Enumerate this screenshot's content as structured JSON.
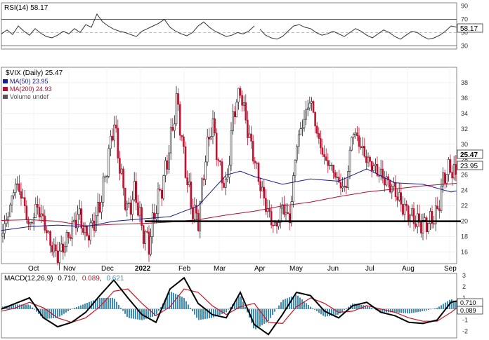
{
  "chart_data": [
    {
      "type": "line",
      "panel": "rsi",
      "label": "RSI(14) 58.17",
      "current_value_label": "58.17",
      "y_ticks": [
        30,
        50,
        70,
        90
      ],
      "ylim": [
        25,
        95
      ],
      "reference_lines": [
        30,
        70
      ],
      "series_color": "#333333",
      "series": [
        {
          "x": [
            0,
            8,
            16,
            24,
            32,
            40,
            48,
            56,
            64,
            72,
            80,
            88,
            96,
            104,
            112,
            120,
            128,
            136,
            144,
            152,
            160,
            168,
            176,
            184,
            192,
            200,
            208,
            216,
            224,
            232,
            240,
            248,
            256,
            264,
            272,
            280,
            288,
            296,
            304,
            312,
            320,
            328,
            336,
            344,
            352,
            360
          ],
          "values": [
            48,
            54,
            47,
            60,
            52,
            46,
            56,
            49,
            44,
            42,
            46,
            52,
            48,
            56,
            50,
            62,
            58,
            78,
            66,
            60,
            55,
            52,
            50,
            47,
            44,
            52,
            56,
            60,
            64,
            70,
            58,
            52,
            48,
            45,
            50,
            60,
            66,
            58,
            52,
            48,
            44,
            46,
            50,
            48,
            52,
            60
          ]
        },
        {
          "x": [
            368,
            376,
            384,
            392,
            400,
            408,
            416,
            424,
            432,
            440,
            448,
            456,
            464,
            472,
            480,
            488,
            496,
            504,
            512,
            520,
            528,
            536,
            544,
            552,
            560,
            568,
            576,
            584,
            592,
            600,
            608,
            616,
            624,
            632,
            640,
            648
          ],
          "values": [
            55,
            46,
            42,
            40,
            44,
            52,
            60,
            62,
            58,
            56,
            50,
            46,
            48,
            52,
            48,
            44,
            50,
            56,
            52,
            46,
            42,
            48,
            54,
            50,
            44,
            40,
            46,
            52,
            50,
            44,
            40,
            42,
            46,
            52,
            60,
            58.17
          ]
        }
      ]
    },
    {
      "type": "candlestick",
      "panel": "price",
      "label": "$VIX (Daily) 25.47",
      "ylim": [
        14.5,
        40
      ],
      "y_ticks": [
        16,
        18,
        20,
        22,
        24,
        26,
        28,
        30,
        32,
        34,
        36,
        38
      ],
      "x_ticks": [
        "Oct",
        "Nov",
        "Dec",
        "2022",
        "Feb",
        "Mar",
        "Apr",
        "May",
        "Jun",
        "Jul",
        "Aug",
        "Sep"
      ],
      "legend": [
        {
          "label": "MA(50) 23.95",
          "color": "#1a1a8c"
        },
        {
          "label": "MA(200) 24.93",
          "color": "#b01030"
        },
        {
          "label": "Volume undef",
          "color": "#555555"
        }
      ],
      "last_price_label": "25.47",
      "ma50_label": "23.95",
      "ma200_label": "24.93",
      "support_level": 20,
      "close_path": {
        "x": [
          0,
          10,
          20,
          30,
          40,
          50,
          60,
          70,
          80,
          90,
          100,
          110,
          120,
          130,
          140,
          150,
          160,
          170,
          180,
          190,
          200,
          210,
          220,
          230,
          240,
          250,
          260,
          270,
          280,
          290,
          300,
          310,
          320,
          330,
          340,
          350,
          360,
          370,
          380,
          390,
          400,
          410,
          420,
          430,
          440,
          450,
          460,
          470,
          480,
          490,
          500,
          510,
          520,
          530,
          540,
          550,
          560,
          570,
          580,
          590,
          600,
          610,
          620,
          630,
          640,
          648
        ],
        "values": [
          18,
          21,
          25,
          23,
          19,
          22,
          20,
          17,
          15.5,
          17,
          19,
          21,
          18,
          19.5,
          22,
          27,
          33,
          26,
          21,
          24,
          19,
          17,
          22,
          25,
          30,
          36,
          28,
          22,
          20,
          28,
          33,
          27,
          24,
          34,
          37,
          32,
          28,
          24,
          21,
          19,
          22,
          20,
          30,
          33,
          36,
          31,
          28,
          27,
          25,
          24,
          32,
          30,
          28,
          27,
          26,
          25,
          24,
          22,
          21,
          20,
          19.5,
          20,
          21,
          26,
          27,
          25.47
        ]
      },
      "ma50": {
        "x": [
          0,
          40,
          80,
          120,
          160,
          200,
          240,
          280,
          320,
          340,
          360,
          400,
          440,
          480,
          520,
          560,
          600,
          640,
          648
        ],
        "values": [
          18.8,
          19.3,
          19.5,
          19.3,
          20,
          20.3,
          20.6,
          22,
          26,
          26.5,
          25.8,
          24.8,
          25.5,
          25.2,
          26.8,
          25,
          24.8,
          23.8,
          23.95
        ]
      },
      "ma200": {
        "x": [
          0,
          40,
          80,
          120,
          160,
          200,
          240,
          280,
          320,
          360,
          400,
          440,
          480,
          520,
          560,
          600,
          648
        ],
        "values": [
          20.1,
          20.2,
          20.0,
          19.4,
          19.6,
          19.7,
          19.9,
          20.2,
          20.8,
          21.3,
          22,
          22.5,
          23.2,
          23.8,
          24.2,
          24.6,
          24.93
        ]
      }
    },
    {
      "type": "histogram+line",
      "panel": "macd",
      "label_prefix": "MACD(12,26,9)",
      "macd_value": "0.710",
      "signal_value": "0.089",
      "hist_value": "0.621",
      "macd_color": "#000000",
      "signal_color": "#d01020",
      "hist_color": "#3a8db8",
      "ylim": [
        -2.6,
        3.2
      ],
      "y_ticks": [
        -2,
        -1,
        0,
        1,
        2,
        3
      ],
      "macd": {
        "x": [
          0,
          20,
          40,
          60,
          80,
          100,
          120,
          140,
          160,
          180,
          200,
          220,
          240,
          260,
          280,
          300,
          320,
          340,
          360,
          380,
          400,
          420,
          440,
          460,
          480,
          500,
          520,
          540,
          560,
          580,
          600,
          620,
          640,
          648
        ],
        "values": [
          0,
          0.5,
          1,
          -0.8,
          -1.6,
          -1.2,
          -0.3,
          1.2,
          2.6,
          1.0,
          -0.5,
          -1.2,
          1.8,
          2.8,
          0.5,
          -0.5,
          -0.8,
          1.5,
          -1.4,
          -2.3,
          -0.5,
          1.5,
          1.2,
          -0.2,
          -0.8,
          0.3,
          0.6,
          -0.3,
          -0.6,
          -1.2,
          -1.3,
          -1.0,
          0.6,
          0.71
        ]
      },
      "signal": {
        "x": [
          0,
          20,
          40,
          60,
          80,
          100,
          120,
          140,
          160,
          180,
          200,
          220,
          240,
          260,
          280,
          300,
          320,
          340,
          360,
          380,
          400,
          420,
          440,
          460,
          480,
          500,
          520,
          540,
          560,
          580,
          600,
          620,
          640,
          648
        ],
        "values": [
          -0.2,
          0.1,
          0.6,
          0.1,
          -0.8,
          -1.2,
          -0.8,
          0.2,
          1.6,
          1.8,
          0.5,
          -0.6,
          0.2,
          1.8,
          1.5,
          0.3,
          -0.5,
          0.2,
          0.5,
          -1.2,
          -1.3,
          0.2,
          1.0,
          0.5,
          -0.3,
          -0.2,
          0.3,
          0,
          -0.3,
          -0.8,
          -1.1,
          -1.1,
          -0.3,
          0.089
        ]
      }
    }
  ]
}
